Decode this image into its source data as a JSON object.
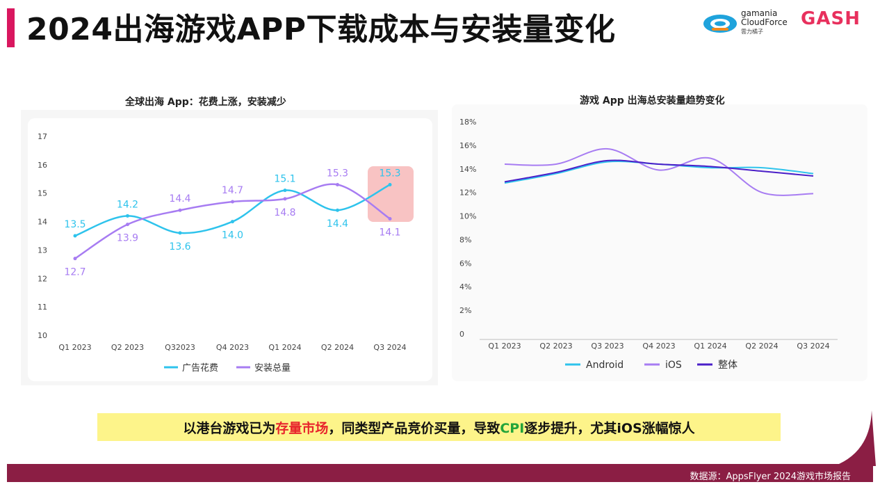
{
  "header": {
    "title": "2024出海游戏APP下载成本与安装量变化",
    "logo_gamania": [
      "gamania",
      "CloudForce",
      "雲力橘子"
    ],
    "logo_gash": "GASH"
  },
  "colors": {
    "accent": "#d9175f",
    "cyan": "#2ec3ec",
    "purple": "#a77cf2",
    "dark_purple": "#4b1fc8"
  },
  "chart_data": [
    {
      "type": "line",
      "title": "全球出海 App：花费上涨，安装减少",
      "categories": [
        "Q1 2023",
        "Q2 2023",
        "Q32023",
        "Q4 2023",
        "Q1 2024",
        "Q2 2024",
        "Q3 2024"
      ],
      "y_ticks": [
        "17",
        "16",
        "15",
        "14",
        "13",
        "12",
        "11",
        "10"
      ],
      "ylim": [
        10,
        17
      ],
      "series": [
        {
          "name": "广告花费",
          "color": "#2ec3ec",
          "values": [
            13.5,
            14.2,
            13.6,
            14.0,
            15.1,
            14.4,
            15.3
          ],
          "labels": [
            "13.5",
            "14.2",
            "13.6",
            "14.0",
            "15.1",
            "14.4",
            "15.3"
          ]
        },
        {
          "name": "安装总量",
          "color": "#a77cf2",
          "values": [
            12.7,
            13.9,
            14.4,
            14.7,
            14.8,
            15.3,
            14.1
          ],
          "labels": [
            "12.7",
            "13.9",
            "14.4",
            "14.7",
            "14.8",
            "15.3",
            "14.1"
          ]
        }
      ],
      "highlight": "Q3 2024"
    },
    {
      "type": "line",
      "title": "游戏 App 出海总安装量趋势变化",
      "categories": [
        "Q1 2023",
        "Q2 2023",
        "Q3 2023",
        "Q4 2023",
        "Q1 2024",
        "Q2 2024",
        "Q3 2024"
      ],
      "y_ticks": [
        "18%",
        "16%",
        "14%",
        "12%",
        "10%",
        "8%",
        "6%",
        "4%",
        "2%",
        "0"
      ],
      "ylim": [
        0,
        18
      ],
      "series": [
        {
          "name": "Android",
          "color": "#2ec3ec",
          "values": [
            12.8,
            13.6,
            14.6,
            14.4,
            14.1,
            14.1,
            13.6
          ]
        },
        {
          "name": "iOS",
          "color": "#a77cf2",
          "values": [
            14.4,
            14.4,
            15.7,
            13.9,
            14.9,
            12.0,
            11.9
          ]
        },
        {
          "name": "整体",
          "color": "#4b1fc8",
          "values": [
            12.9,
            13.7,
            14.7,
            14.4,
            14.2,
            13.8,
            13.4
          ]
        }
      ]
    }
  ],
  "banner": {
    "part1": "以港台游戏已为",
    "highlight_red": "存量市场",
    "part2": "，同类型产品竞价买量，导致",
    "highlight_green": "CPI",
    "part3": "逐步提升，尤其iOS涨幅惊人"
  },
  "footer": {
    "source": "数据源：AppsFlyer 2024游戏市场报告"
  }
}
